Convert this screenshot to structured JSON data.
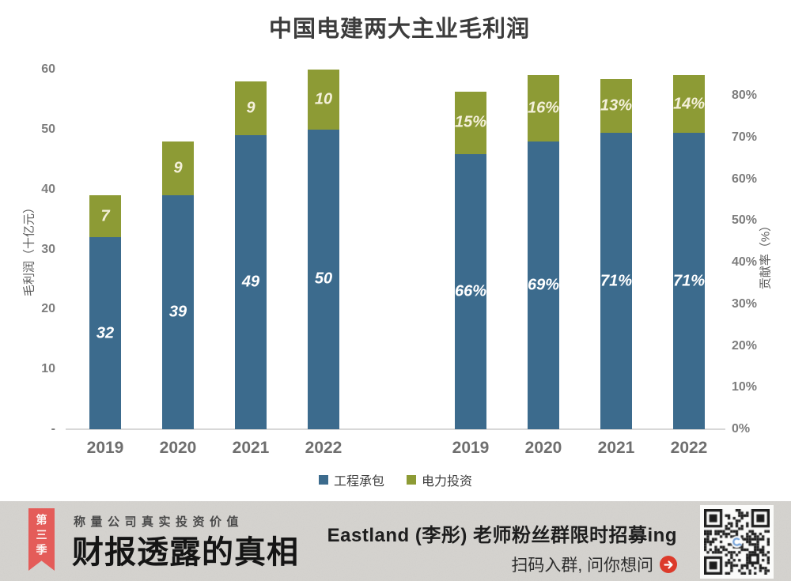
{
  "title": "中国电建两大主业毛利润",
  "colors": {
    "bar_blue": "#3c6b8d",
    "bar_olive": "#8d9b35",
    "label_on_blue": "#ffffff",
    "label_on_olive": "#f4f0da",
    "ribbon_red": "#e45c59",
    "arrow_red": "#dc3b2b"
  },
  "chart_data": {
    "type": "bar",
    "stacked": true,
    "title": "中国电建两大主业毛利润",
    "legend": [
      "工程承包",
      "电力投资"
    ],
    "legend_position": "bottom",
    "grid": false,
    "left_axis": {
      "title": "毛利润（十亿元）",
      "range": [
        0,
        60
      ],
      "ticks": [
        {
          "label": "60",
          "value": 60
        },
        {
          "label": "50",
          "value": 50
        },
        {
          "label": "40",
          "value": 40
        },
        {
          "label": "30",
          "value": 30
        },
        {
          "label": "20",
          "value": 20
        },
        {
          "label": "10",
          "value": 10
        },
        {
          "label": "-",
          "value": 0
        }
      ]
    },
    "right_axis": {
      "title": "贡献率（%）",
      "range_percent": [
        0,
        86
      ],
      "ticks": [
        {
          "label": "80%",
          "value": 80
        },
        {
          "label": "70%",
          "value": 70
        },
        {
          "label": "60%",
          "value": 60
        },
        {
          "label": "50%",
          "value": 50
        },
        {
          "label": "40%",
          "value": 40
        },
        {
          "label": "30%",
          "value": 30
        },
        {
          "label": "20%",
          "value": 20
        },
        {
          "label": "10%",
          "value": 10
        },
        {
          "label": "0%",
          "value": 0
        }
      ]
    },
    "groups": [
      {
        "axis": "left",
        "unit": "",
        "categories": [
          "2019",
          "2020",
          "2021",
          "2022"
        ],
        "series": [
          {
            "name": "工程承包",
            "values": [
              32,
              39,
              49,
              50
            ]
          },
          {
            "name": "电力投资",
            "values": [
              7,
              9,
              9,
              10
            ]
          }
        ]
      },
      {
        "axis": "right",
        "unit": "%",
        "categories": [
          "2019",
          "2020",
          "2021",
          "2022"
        ],
        "series": [
          {
            "name": "工程承包",
            "values": [
              66,
              69,
              71,
              71
            ]
          },
          {
            "name": "电力投资",
            "values": [
              15,
              16,
              13,
              14
            ]
          }
        ]
      }
    ]
  },
  "banner": {
    "season_tag": "第三季",
    "tagline": "称量公司真实投资价值",
    "series_title": "财报透露的真相",
    "promo_line1": "Eastland (李彤) 老师粉丝群限时招募ing",
    "promo_line2": "扫码入群, 问你想问"
  }
}
